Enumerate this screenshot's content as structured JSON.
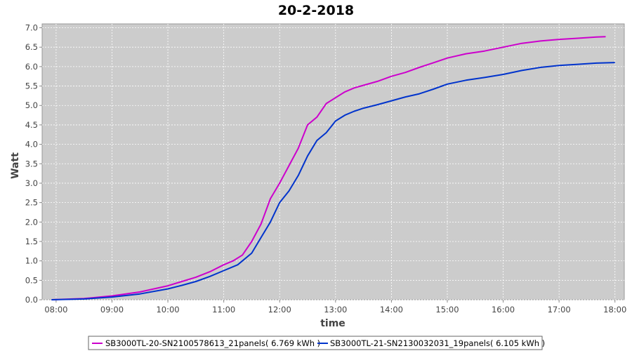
{
  "chart_data": {
    "type": "line",
    "title": "20-2-2018",
    "xlabel": "time",
    "ylabel": "Watt",
    "x_ticks": [
      "08:00",
      "09:00",
      "10:00",
      "11:00",
      "12:00",
      "13:00",
      "14:00",
      "15:00",
      "16:00",
      "17:00",
      "18:00"
    ],
    "y_ticks": [
      "0.0",
      "0.5",
      "1.0",
      "1.5",
      "2.0",
      "2.5",
      "3.0",
      "3.5",
      "4.0",
      "4.5",
      "5.0",
      "5.5",
      "6.0",
      "6.5",
      "7.0"
    ],
    "xlim": [
      "07:45",
      "18:10"
    ],
    "ylim": [
      0,
      7.1
    ],
    "grid": true,
    "legend_position": "bottom",
    "series": [
      {
        "name": "SB3000TL-20-SN2100578613_21panels( 6.769 kWh )",
        "color": "#cc00cc",
        "x": [
          "07:55",
          "08:30",
          "09:00",
          "09:30",
          "10:00",
          "10:15",
          "10:30",
          "10:45",
          "11:00",
          "11:10",
          "11:20",
          "11:30",
          "11:40",
          "11:50",
          "12:00",
          "12:10",
          "12:20",
          "12:30",
          "12:40",
          "12:50",
          "13:00",
          "13:10",
          "13:20",
          "13:30",
          "13:45",
          "14:00",
          "14:15",
          "14:30",
          "14:45",
          "15:00",
          "15:20",
          "15:40",
          "16:00",
          "16:20",
          "16:40",
          "17:00",
          "17:20",
          "17:40",
          "17:50"
        ],
        "y": [
          0.0,
          0.03,
          0.1,
          0.2,
          0.36,
          0.47,
          0.58,
          0.72,
          0.9,
          1.0,
          1.15,
          1.5,
          1.95,
          2.6,
          3.0,
          3.45,
          3.9,
          4.5,
          4.7,
          5.05,
          5.2,
          5.35,
          5.45,
          5.52,
          5.62,
          5.75,
          5.85,
          5.98,
          6.1,
          6.22,
          6.33,
          6.4,
          6.5,
          6.6,
          6.66,
          6.7,
          6.73,
          6.76,
          6.769
        ]
      },
      {
        "name": "SB3000TL-21-SN2130032031_19panels( 6.105 kWh )",
        "color": "#0033cc",
        "x": [
          "07:55",
          "08:30",
          "09:00",
          "09:30",
          "10:00",
          "10:15",
          "10:30",
          "10:45",
          "11:00",
          "11:15",
          "11:30",
          "11:40",
          "11:50",
          "12:00",
          "12:10",
          "12:20",
          "12:30",
          "12:40",
          "12:50",
          "12:55",
          "13:00",
          "13:10",
          "13:20",
          "13:30",
          "13:45",
          "14:00",
          "14:15",
          "14:30",
          "14:45",
          "15:00",
          "15:20",
          "15:40",
          "16:00",
          "16:20",
          "16:40",
          "17:00",
          "17:20",
          "17:40",
          "18:00"
        ],
        "y": [
          0.0,
          0.02,
          0.07,
          0.15,
          0.28,
          0.37,
          0.47,
          0.6,
          0.75,
          0.9,
          1.2,
          1.6,
          2.0,
          2.5,
          2.8,
          3.2,
          3.7,
          4.1,
          4.3,
          4.45,
          4.6,
          4.75,
          4.85,
          4.93,
          5.02,
          5.12,
          5.22,
          5.3,
          5.42,
          5.55,
          5.65,
          5.72,
          5.8,
          5.9,
          5.98,
          6.03,
          6.06,
          6.09,
          6.105
        ]
      }
    ]
  }
}
